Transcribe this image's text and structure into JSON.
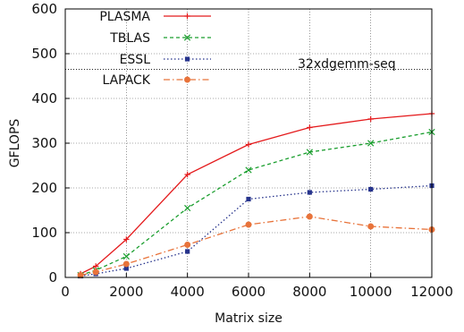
{
  "chart_data": {
    "type": "line",
    "title": "",
    "xlabel": "Matrix size",
    "ylabel": "GFLOPS",
    "xlim": [
      0,
      12000
    ],
    "ylim": [
      0,
      600
    ],
    "x_ticks": [
      0,
      2000,
      4000,
      6000,
      8000,
      10000,
      12000
    ],
    "y_ticks": [
      0,
      100,
      200,
      300,
      400,
      500,
      600
    ],
    "grid": true,
    "legend_position": "top-left",
    "annotation": "32xdgemm-seq",
    "reference_line": {
      "y": 465,
      "style": "dotted"
    },
    "x": [
      500,
      1000,
      2000,
      4000,
      6000,
      8000,
      10000,
      12000
    ],
    "series": [
      {
        "name": "PLASMA",
        "color": "#e41a1c",
        "marker": "plus",
        "dash": "solid",
        "values": [
          8,
          25,
          85,
          230,
          297,
          335,
          354,
          366
        ]
      },
      {
        "name": "TBLAS",
        "color": "#1a9e2e",
        "marker": "x",
        "dash": "dashed",
        "values": [
          5,
          16,
          47,
          155,
          240,
          280,
          300,
          325
        ]
      },
      {
        "name": "ESSL",
        "color": "#26338c",
        "marker": "square",
        "dash": "dotted",
        "values": [
          3,
          8,
          20,
          58,
          175,
          190,
          197,
          205
        ]
      },
      {
        "name": "LAPACK",
        "color": "#e8733a",
        "marker": "circle",
        "dash": "dashdot",
        "values": [
          5,
          12,
          30,
          73,
          118,
          136,
          114,
          107
        ]
      }
    ]
  }
}
